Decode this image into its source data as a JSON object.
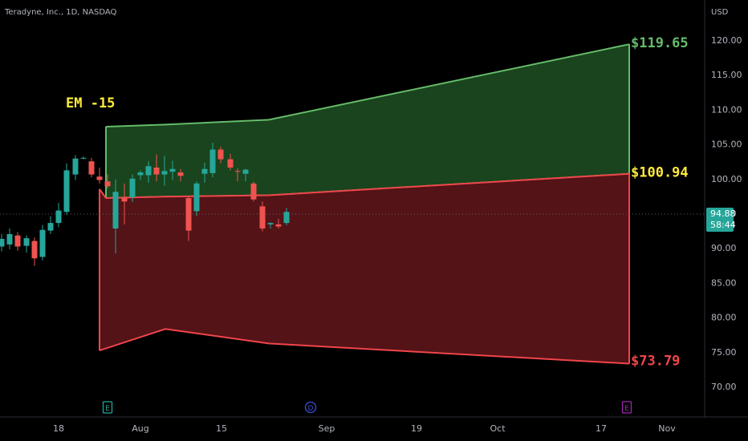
{
  "header": {
    "title": "Teradyne, Inc., 1D, NASDAQ",
    "currency": "USD"
  },
  "price_box": {
    "price": "94.88",
    "countdown": "58:44"
  },
  "chart_data": {
    "type": "candlestick",
    "y_ticks": [
      "120.00",
      "115.00",
      "110.00",
      "105.00",
      "100.00",
      "95.00",
      "90.00",
      "85.00",
      "80.00",
      "75.00",
      "70.00"
    ],
    "x_ticks": [
      "18",
      "Aug",
      "15",
      "Sep",
      "19",
      "Oct",
      "17",
      "Nov"
    ],
    "ylim": [
      65,
      123
    ],
    "annotation": {
      "text": "EM -15",
      "color": "#ffeb3b"
    },
    "zones": [
      {
        "name": "upper",
        "fill": "#1b4a1f",
        "stroke": "#66bb6a",
        "top": [
          [
            132,
            107.5
          ],
          [
            206,
            107.8
          ],
          [
            335,
            108.5
          ],
          [
            784,
            119.4
          ]
        ],
        "bottom": [
          [
            132,
            97.2
          ],
          [
            206,
            97.4
          ],
          [
            335,
            97.6
          ],
          [
            784,
            100.7
          ]
        ]
      },
      {
        "name": "lower",
        "fill": "#5a1519",
        "stroke": "#f0454b",
        "top": [
          [
            124,
            98.5
          ],
          [
            132,
            97.2
          ],
          [
            206,
            97.4
          ],
          [
            335,
            97.6
          ],
          [
            784,
            100.7
          ]
        ],
        "bottom": [
          [
            124,
            75.2
          ],
          [
            206,
            78.3
          ],
          [
            335,
            76.2
          ],
          [
            784,
            73.3
          ]
        ]
      }
    ],
    "target_labels": [
      {
        "text": "$119.65",
        "value": 119.65,
        "color": "#66bb6a"
      },
      {
        "text": "$100.94",
        "value": 100.94,
        "color": "#ffeb3b"
      },
      {
        "text": "$73.79",
        "value": 73.79,
        "color": "#f0454b"
      }
    ],
    "current_price": 94.88,
    "candles": [
      {
        "x": 2,
        "o": 90.2,
        "h": 92.0,
        "l": 89.5,
        "c": 91.3
      },
      {
        "x": 12,
        "o": 90.5,
        "h": 92.8,
        "l": 89.8,
        "c": 92.0
      },
      {
        "x": 22,
        "o": 91.8,
        "h": 92.3,
        "l": 89.6,
        "c": 90.2
      },
      {
        "x": 33,
        "o": 90.3,
        "h": 91.8,
        "l": 89.3,
        "c": 91.4
      },
      {
        "x": 43,
        "o": 91.0,
        "h": 91.5,
        "l": 87.4,
        "c": 88.5
      },
      {
        "x": 53,
        "o": 88.7,
        "h": 93.3,
        "l": 88.2,
        "c": 92.6
      },
      {
        "x": 63,
        "o": 92.5,
        "h": 94.6,
        "l": 92.0,
        "c": 93.6
      },
      {
        "x": 73,
        "o": 93.6,
        "h": 96.5,
        "l": 93.0,
        "c": 95.4
      },
      {
        "x": 83,
        "o": 95.2,
        "h": 102.2,
        "l": 94.8,
        "c": 101.2
      },
      {
        "x": 94,
        "o": 100.6,
        "h": 103.4,
        "l": 99.8,
        "c": 102.9
      },
      {
        "x": 104,
        "o": 102.9,
        "h": 103.2,
        "l": 102.8,
        "c": 103.0
      },
      {
        "x": 114,
        "o": 102.5,
        "h": 103.0,
        "l": 100.2,
        "c": 100.6
      },
      {
        "x": 124,
        "o": 100.3,
        "h": 101.6,
        "l": 99.3,
        "c": 99.8
      },
      {
        "x": 134,
        "o": 99.6,
        "h": 100.6,
        "l": 98.6,
        "c": 98.9
      },
      {
        "x": 144,
        "o": 92.8,
        "h": 99.9,
        "l": 89.2,
        "c": 98.1
      },
      {
        "x": 155,
        "o": 97.3,
        "h": 99.3,
        "l": 93.4,
        "c": 96.7
      },
      {
        "x": 165,
        "o": 97.3,
        "h": 100.6,
        "l": 96.6,
        "c": 100.0
      },
      {
        "x": 175,
        "o": 100.5,
        "h": 101.2,
        "l": 99.8,
        "c": 100.9
      },
      {
        "x": 185,
        "o": 100.5,
        "h": 102.5,
        "l": 99.4,
        "c": 101.8
      },
      {
        "x": 195,
        "o": 101.6,
        "h": 103.5,
        "l": 99.6,
        "c": 100.6
      },
      {
        "x": 205,
        "o": 100.6,
        "h": 103.3,
        "l": 99.0,
        "c": 101.1
      },
      {
        "x": 215,
        "o": 101.0,
        "h": 102.6,
        "l": 99.8,
        "c": 101.4
      },
      {
        "x": 225,
        "o": 100.9,
        "h": 101.4,
        "l": 99.6,
        "c": 100.4
      },
      {
        "x": 235,
        "o": 97.2,
        "h": 97.4,
        "l": 91.0,
        "c": 92.5
      },
      {
        "x": 245,
        "o": 95.3,
        "h": 99.6,
        "l": 94.6,
        "c": 99.3
      },
      {
        "x": 255,
        "o": 100.7,
        "h": 102.3,
        "l": 99.4,
        "c": 101.4
      },
      {
        "x": 265,
        "o": 100.8,
        "h": 105.2,
        "l": 100.2,
        "c": 104.2
      },
      {
        "x": 275,
        "o": 104.2,
        "h": 104.6,
        "l": 102.2,
        "c": 102.8
      },
      {
        "x": 287,
        "o": 102.8,
        "h": 103.6,
        "l": 101.2,
        "c": 101.6
      },
      {
        "x": 296,
        "o": 101.1,
        "h": 101.5,
        "l": 99.6,
        "c": 101.0
      },
      {
        "x": 306,
        "o": 100.7,
        "h": 101.4,
        "l": 99.6,
        "c": 101.3
      },
      {
        "x": 316,
        "o": 99.3,
        "h": 99.6,
        "l": 96.7,
        "c": 97.0
      },
      {
        "x": 327,
        "o": 96.0,
        "h": 96.7,
        "l": 92.4,
        "c": 92.8
      },
      {
        "x": 337,
        "o": 93.4,
        "h": 93.7,
        "l": 92.8,
        "c": 93.6
      },
      {
        "x": 347,
        "o": 93.4,
        "h": 94.2,
        "l": 92.8,
        "c": 93.1
      },
      {
        "x": 357,
        "o": 93.6,
        "h": 95.8,
        "l": 93.3,
        "c": 95.2
      }
    ],
    "event_markers": [
      {
        "letter": "E",
        "x": 134,
        "shape": "square",
        "color": "#26a69a"
      },
      {
        "letter": "D",
        "x": 387,
        "shape": "circle",
        "color": "#3f51d8"
      },
      {
        "letter": "E",
        "x": 781,
        "shape": "square",
        "color": "#9c27b0"
      }
    ]
  }
}
